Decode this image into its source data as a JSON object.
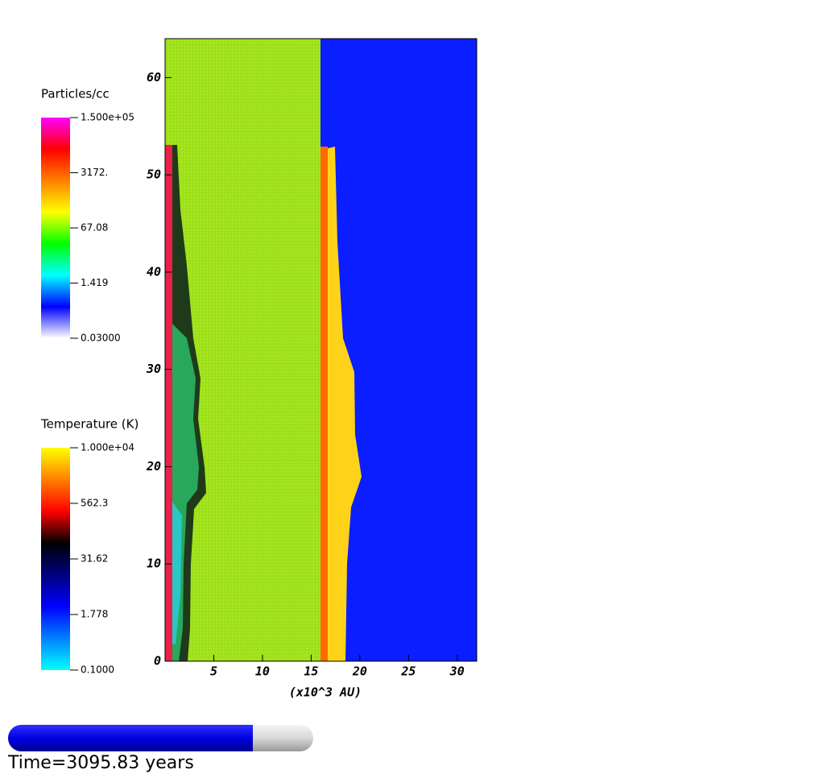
{
  "chart_data": {
    "type": "field",
    "xlabel": "(x10^3 AU)",
    "xlim": [
      0,
      32
    ],
    "xticks": [
      5,
      10,
      15,
      20,
      25,
      30
    ],
    "ylim": [
      0,
      64
    ],
    "yticks": [
      0,
      10,
      20,
      30,
      40,
      50,
      60
    ],
    "colorbars": [
      {
        "title": "Particles/cc",
        "scale": "log",
        "range": [
          0.03,
          150000
        ],
        "colors": [
          "#ffffff",
          "#0000ff",
          "#00ffff",
          "#00ff00",
          "#ffff00",
          "#ff8000",
          "#ff0000",
          "#ff00ff"
        ],
        "ticks": [
          {
            "value": 150000,
            "label": "1.500e+05"
          },
          {
            "value": 3172,
            "label": "3172."
          },
          67.08,
          1.419,
          {
            "value": 0.03,
            "label": "0.03000"
          }
        ]
      },
      {
        "title": "Temperature (K)",
        "scale": "log",
        "range": [
          0.1,
          10000
        ],
        "colors": [
          "#00ffff",
          "#0080ff",
          "#0000ff",
          "#000080",
          "#000000",
          "#ff0000",
          "#ff8000",
          "#ffff00"
        ],
        "ticks": [
          {
            "value": 10000,
            "label": "1.000e+04"
          },
          562.3,
          31.62,
          1.778,
          {
            "value": 0.1,
            "label": "0.1000"
          }
        ]
      }
    ],
    "time_label": "Time=3095.83 years"
  }
}
